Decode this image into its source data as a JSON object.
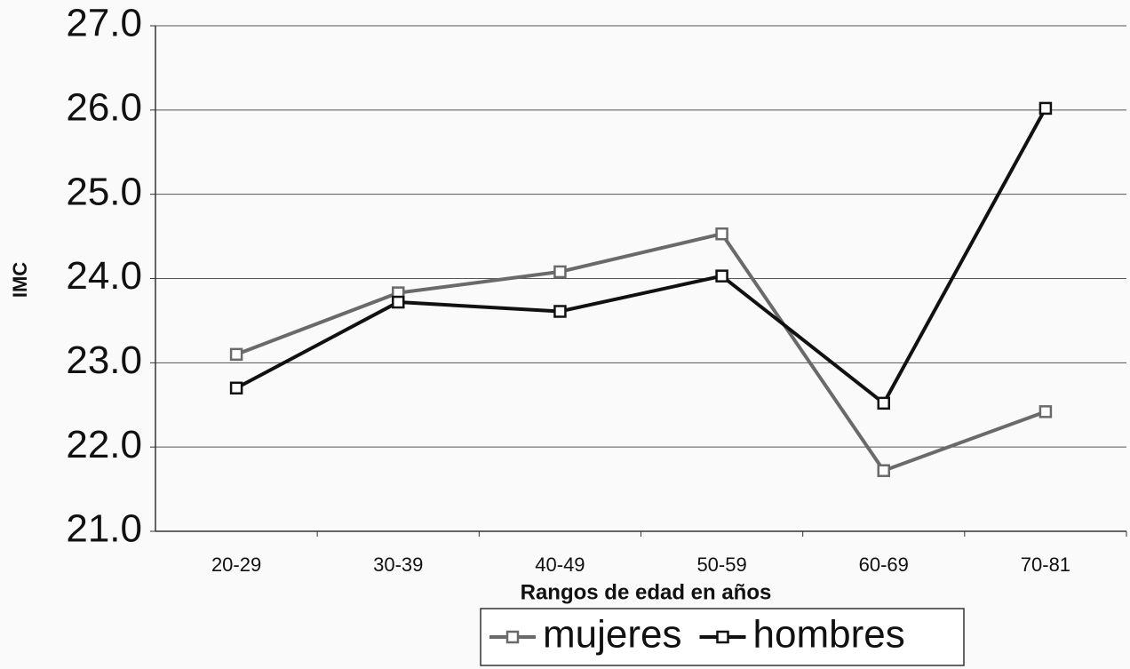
{
  "chart_data": {
    "type": "line",
    "categories": [
      "20-29",
      "30-39",
      "40-49",
      "50-59",
      "60-69",
      "70-81"
    ],
    "series": [
      {
        "name": "mujeres",
        "color": "#6a6a6a",
        "values": [
          23.1,
          23.83,
          24.08,
          24.53,
          21.72,
          22.42
        ]
      },
      {
        "name": "hombres",
        "color": "#111111",
        "values": [
          22.7,
          23.72,
          23.61,
          24.03,
          22.52,
          26.02
        ]
      }
    ],
    "x_label": "Rangos de edad en años",
    "y_label": "IMC",
    "ylim": [
      21,
      27
    ],
    "yticks": [
      {
        "value": 21,
        "label": "21.0"
      },
      {
        "value": 22,
        "label": "22.0"
      },
      {
        "value": 23,
        "label": "23.0"
      },
      {
        "value": 24,
        "label": "24.0"
      },
      {
        "value": 25,
        "label": "25.0"
      },
      {
        "value": 26,
        "label": "26.0"
      },
      {
        "value": 27,
        "label": "27.0"
      }
    ],
    "grid": true,
    "legend": "bottom"
  }
}
